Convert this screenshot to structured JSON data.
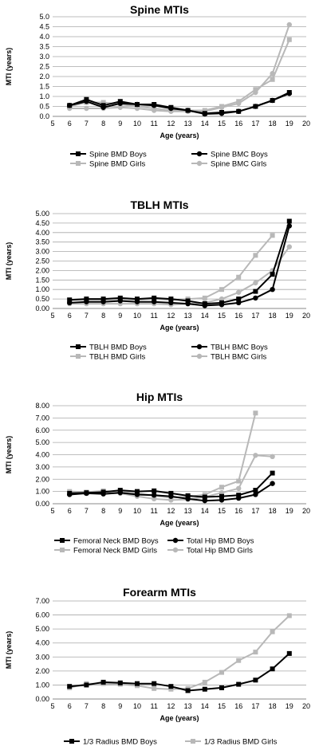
{
  "chart_data": [
    {
      "type": "line",
      "title": "Spine MTIs",
      "xlabel": "Age (years)",
      "ylabel": "MTI (years)",
      "xlim": [
        5,
        20
      ],
      "ylim": [
        0,
        5
      ],
      "xticks": [
        "5",
        "6",
        "7",
        "8",
        "9",
        "10",
        "11",
        "12",
        "13",
        "14",
        "15",
        "16",
        "17",
        "18",
        "19",
        "20"
      ],
      "yticks": [
        "0.0",
        "0.5",
        "1.0",
        "1.5",
        "2.0",
        "2.5",
        "3.0",
        "3.5",
        "4.0",
        "4.5",
        "5.0"
      ],
      "x": [
        6,
        7,
        8,
        9,
        10,
        11,
        12,
        13,
        14,
        15,
        16,
        17,
        18,
        19
      ],
      "series": [
        {
          "name": "Spine BMD Boys",
          "color": "#000000",
          "marker": "square",
          "values": [
            0.55,
            0.85,
            0.55,
            0.75,
            0.6,
            0.6,
            0.45,
            0.3,
            0.15,
            0.2,
            0.25,
            0.5,
            0.8,
            1.2
          ]
        },
        {
          "name": "Spine BMC Boys",
          "color": "#000000",
          "marker": "circle",
          "values": [
            0.55,
            0.75,
            0.45,
            0.65,
            0.6,
            0.55,
            0.4,
            0.3,
            0.12,
            0.15,
            0.25,
            0.5,
            0.8,
            1.15
          ]
        },
        {
          "name": "Spine BMD Girls",
          "color": "#b8b8b8",
          "marker": "square",
          "values": [
            0.5,
            0.7,
            0.7,
            0.6,
            0.5,
            0.4,
            0.3,
            0.3,
            0.3,
            0.5,
            0.75,
            1.35,
            1.85,
            3.85
          ]
        },
        {
          "name": "Spine BMC Girls",
          "color": "#b8b8b8",
          "marker": "circle",
          "values": [
            0.4,
            0.4,
            0.4,
            0.45,
            0.4,
            0.3,
            0.25,
            0.25,
            0.25,
            0.45,
            0.65,
            1.2,
            2.15,
            4.6
          ]
        }
      ]
    },
    {
      "type": "line",
      "title": "TBLH MTIs",
      "xlabel": "Age (years)",
      "ylabel": "MTI (years)",
      "xlim": [
        5,
        20
      ],
      "ylim": [
        0,
        5
      ],
      "xticks": [
        "5",
        "6",
        "7",
        "8",
        "9",
        "10",
        "11",
        "12",
        "13",
        "14",
        "15",
        "16",
        "17",
        "18",
        "19",
        "20"
      ],
      "yticks": [
        "0.00",
        "0.50",
        "1.00",
        "1.50",
        "2.00",
        "2.50",
        "3.00",
        "3.50",
        "4.00",
        "4.50",
        "5.00"
      ],
      "x": [
        6,
        7,
        8,
        9,
        10,
        11,
        12,
        13,
        14,
        15,
        16,
        17,
        18,
        19
      ],
      "series": [
        {
          "name": "TBLH BMD Boys",
          "color": "#000000",
          "marker": "square",
          "values": [
            0.45,
            0.5,
            0.5,
            0.55,
            0.5,
            0.55,
            0.5,
            0.4,
            0.25,
            0.3,
            0.5,
            0.9,
            1.8,
            4.6
          ]
        },
        {
          "name": "TBLH BMC Boys",
          "color": "#000000",
          "marker": "circle",
          "values": [
            0.3,
            0.35,
            0.35,
            0.4,
            0.35,
            0.35,
            0.3,
            0.25,
            0.15,
            0.2,
            0.3,
            0.55,
            1.0,
            4.35
          ]
        },
        {
          "name": "TBLH BMD Girls",
          "color": "#b8b8b8",
          "marker": "square",
          "values": [
            0.45,
            0.45,
            0.45,
            0.5,
            0.45,
            0.5,
            0.45,
            0.5,
            0.55,
            1.0,
            1.65,
            2.8,
            3.85,
            null
          ]
        },
        {
          "name": "TBLH BMC Girls",
          "color": "#b8b8b8",
          "marker": "circle",
          "values": [
            0.25,
            0.25,
            0.25,
            0.25,
            0.25,
            0.25,
            0.2,
            0.25,
            0.3,
            0.5,
            0.85,
            1.35,
            2.0,
            3.25
          ]
        }
      ]
    },
    {
      "type": "line",
      "title": "Hip MTIs",
      "xlabel": "Age (years)",
      "ylabel": "MTI (years)",
      "xlim": [
        5,
        20
      ],
      "ylim": [
        0,
        8
      ],
      "xticks": [
        "5",
        "6",
        "7",
        "8",
        "9",
        "10",
        "11",
        "12",
        "13",
        "14",
        "15",
        "16",
        "17",
        "18",
        "19",
        "20"
      ],
      "yticks": [
        "0.00",
        "1.00",
        "2.00",
        "3.00",
        "4.00",
        "5.00",
        "6.00",
        "7.00",
        "8.00"
      ],
      "x": [
        6,
        7,
        8,
        9,
        10,
        11,
        12,
        13,
        14,
        15,
        16,
        17,
        18,
        19
      ],
      "series": [
        {
          "name": "Femoral Neck BMD Boys",
          "color": "#000000",
          "marker": "square",
          "values": [
            0.85,
            0.9,
            0.95,
            1.1,
            1.0,
            1.05,
            0.85,
            0.65,
            0.55,
            0.6,
            0.7,
            1.1,
            2.5,
            null
          ]
        },
        {
          "name": "Total Hip BMD Boys",
          "color": "#000000",
          "marker": "circle",
          "values": [
            0.75,
            0.85,
            0.8,
            0.9,
            0.75,
            0.7,
            0.6,
            0.4,
            0.25,
            0.3,
            0.45,
            0.75,
            1.65,
            null
          ]
        },
        {
          "name": "Femoral Neck BMD Girls",
          "color": "#b8b8b8",
          "marker": "square",
          "values": [
            1.0,
            0.95,
            1.05,
            0.95,
            0.85,
            0.65,
            0.5,
            0.55,
            0.75,
            1.35,
            1.85,
            7.4,
            null,
            null
          ]
        },
        {
          "name": "Total Hip BMD Girls",
          "color": "#b8b8b8",
          "marker": "circle",
          "values": [
            0.95,
            0.85,
            1.0,
            0.85,
            0.6,
            0.4,
            0.3,
            0.35,
            0.55,
            0.9,
            1.25,
            3.95,
            3.85,
            null
          ]
        }
      ]
    },
    {
      "type": "line",
      "title": "Forearm MTIs",
      "xlabel": "Age (years)",
      "ylabel": "MTI (years)",
      "xlim": [
        5,
        20
      ],
      "ylim": [
        0,
        7
      ],
      "xticks": [
        "5",
        "6",
        "7",
        "8",
        "9",
        "10",
        "11",
        "12",
        "13",
        "14",
        "15",
        "16",
        "17",
        "18",
        "19",
        "20"
      ],
      "yticks": [
        "0.00",
        "1.00",
        "2.00",
        "3.00",
        "4.00",
        "5.00",
        "6.00",
        "7.00"
      ],
      "x": [
        6,
        7,
        8,
        9,
        10,
        11,
        12,
        13,
        14,
        15,
        16,
        17,
        18,
        19
      ],
      "series": [
        {
          "name": "1/3 Radius BMD Boys",
          "color": "#000000",
          "marker": "square",
          "values": [
            0.9,
            1.0,
            1.2,
            1.15,
            1.1,
            1.1,
            0.9,
            0.6,
            0.7,
            0.8,
            1.05,
            1.35,
            2.15,
            3.25
          ]
        },
        {
          "name": "1/3 Radius BMD Girls",
          "color": "#b8b8b8",
          "marker": "square",
          "values": [
            0.8,
            1.1,
            1.1,
            1.05,
            0.95,
            0.75,
            0.7,
            0.75,
            1.2,
            1.9,
            2.75,
            3.35,
            4.8,
            5.95
          ]
        }
      ]
    }
  ]
}
